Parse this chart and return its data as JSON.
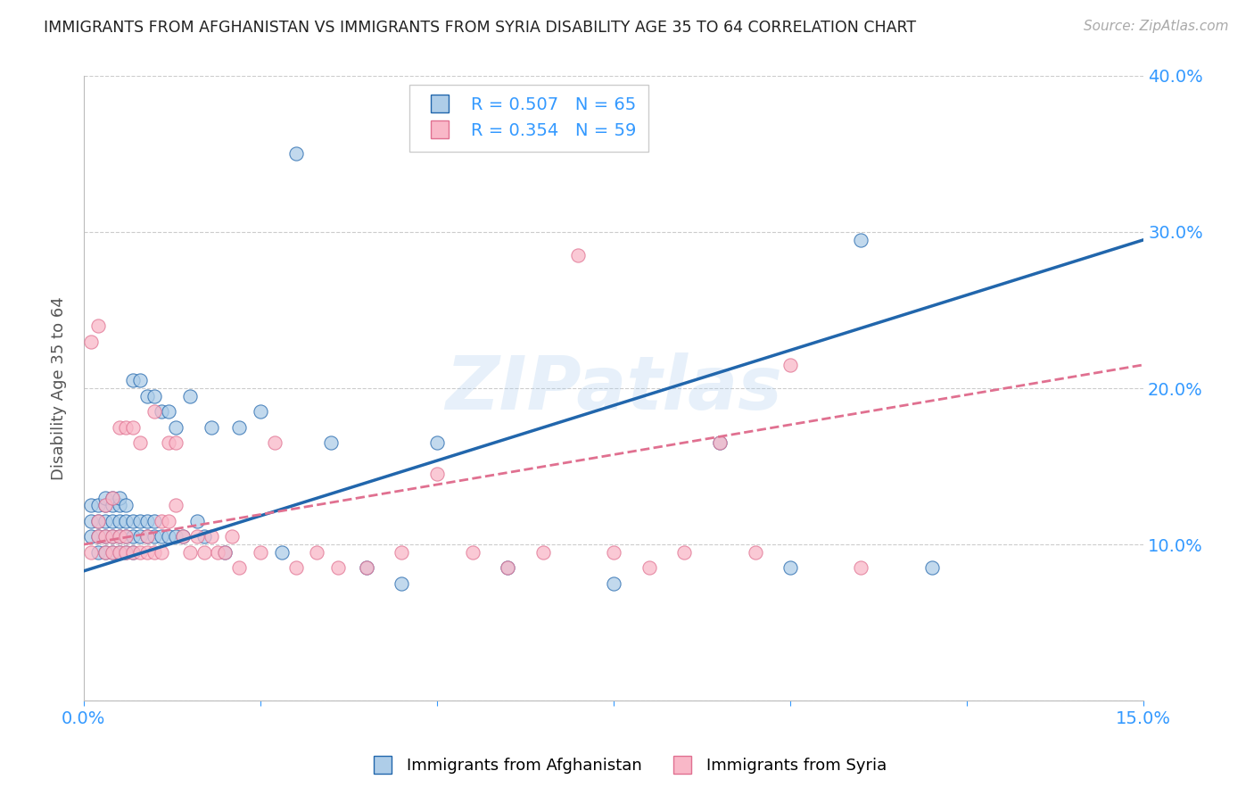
{
  "title": "IMMIGRANTS FROM AFGHANISTAN VS IMMIGRANTS FROM SYRIA DISABILITY AGE 35 TO 64 CORRELATION CHART",
  "source": "Source: ZipAtlas.com",
  "ylabel": "Disability Age 35 to 64",
  "xlim": [
    0.0,
    0.15
  ],
  "ylim": [
    0.0,
    0.4
  ],
  "xticks_shown": [
    0.0,
    0.15
  ],
  "xticks_minor": [
    0.025,
    0.05,
    0.075,
    0.1,
    0.125
  ],
  "yticks": [
    0.0,
    0.1,
    0.2,
    0.3,
    0.4
  ],
  "afghanistan_R": 0.507,
  "afghanistan_N": 65,
  "syria_R": 0.354,
  "syria_N": 59,
  "afghanistan_color": "#aecde8",
  "syria_color": "#f9b8c8",
  "trend_afghanistan_color": "#2166ac",
  "trend_syria_color": "#e07090",
  "watermark": "ZIPatlas",
  "background_color": "#ffffff",
  "axis_label_color": "#3399ff",
  "grid_color": "#cccccc",
  "afghanistan_x": [
    0.001,
    0.001,
    0.001,
    0.002,
    0.002,
    0.002,
    0.002,
    0.003,
    0.003,
    0.003,
    0.003,
    0.003,
    0.004,
    0.004,
    0.004,
    0.004,
    0.004,
    0.005,
    0.005,
    0.005,
    0.005,
    0.005,
    0.006,
    0.006,
    0.006,
    0.006,
    0.007,
    0.007,
    0.007,
    0.007,
    0.008,
    0.008,
    0.008,
    0.009,
    0.009,
    0.009,
    0.01,
    0.01,
    0.01,
    0.011,
    0.011,
    0.012,
    0.012,
    0.013,
    0.013,
    0.014,
    0.015,
    0.016,
    0.017,
    0.018,
    0.02,
    0.022,
    0.025,
    0.028,
    0.03,
    0.035,
    0.04,
    0.045,
    0.05,
    0.06,
    0.075,
    0.09,
    0.1,
    0.11,
    0.12
  ],
  "afghanistan_y": [
    0.105,
    0.115,
    0.125,
    0.095,
    0.105,
    0.115,
    0.125,
    0.095,
    0.105,
    0.115,
    0.125,
    0.13,
    0.095,
    0.105,
    0.115,
    0.125,
    0.13,
    0.095,
    0.105,
    0.115,
    0.125,
    0.13,
    0.095,
    0.105,
    0.115,
    0.125,
    0.095,
    0.105,
    0.115,
    0.205,
    0.105,
    0.115,
    0.205,
    0.105,
    0.115,
    0.195,
    0.105,
    0.115,
    0.195,
    0.105,
    0.185,
    0.105,
    0.185,
    0.105,
    0.175,
    0.105,
    0.195,
    0.115,
    0.105,
    0.175,
    0.095,
    0.175,
    0.185,
    0.095,
    0.35,
    0.165,
    0.085,
    0.075,
    0.165,
    0.085,
    0.075,
    0.165,
    0.085,
    0.295,
    0.085
  ],
  "syria_x": [
    0.001,
    0.001,
    0.002,
    0.002,
    0.002,
    0.003,
    0.003,
    0.003,
    0.004,
    0.004,
    0.004,
    0.005,
    0.005,
    0.005,
    0.006,
    0.006,
    0.006,
    0.007,
    0.007,
    0.008,
    0.008,
    0.009,
    0.009,
    0.01,
    0.01,
    0.011,
    0.011,
    0.012,
    0.012,
    0.013,
    0.013,
    0.014,
    0.015,
    0.016,
    0.017,
    0.018,
    0.019,
    0.02,
    0.021,
    0.022,
    0.025,
    0.027,
    0.03,
    0.033,
    0.036,
    0.04,
    0.045,
    0.05,
    0.055,
    0.06,
    0.065,
    0.07,
    0.075,
    0.08,
    0.085,
    0.09,
    0.095,
    0.1,
    0.11
  ],
  "syria_y": [
    0.095,
    0.23,
    0.105,
    0.115,
    0.24,
    0.095,
    0.105,
    0.125,
    0.095,
    0.105,
    0.13,
    0.095,
    0.105,
    0.175,
    0.095,
    0.105,
    0.175,
    0.095,
    0.175,
    0.095,
    0.165,
    0.095,
    0.105,
    0.095,
    0.185,
    0.095,
    0.115,
    0.115,
    0.165,
    0.125,
    0.165,
    0.105,
    0.095,
    0.105,
    0.095,
    0.105,
    0.095,
    0.095,
    0.105,
    0.085,
    0.095,
    0.165,
    0.085,
    0.095,
    0.085,
    0.085,
    0.095,
    0.145,
    0.095,
    0.085,
    0.095,
    0.285,
    0.095,
    0.085,
    0.095,
    0.165,
    0.095,
    0.215,
    0.085
  ],
  "trend_afg_x0": 0.0,
  "trend_afg_y0": 0.083,
  "trend_afg_x1": 0.15,
  "trend_afg_y1": 0.295,
  "trend_syr_x0": 0.0,
  "trend_syr_y0": 0.1,
  "trend_syr_x1": 0.15,
  "trend_syr_y1": 0.215
}
